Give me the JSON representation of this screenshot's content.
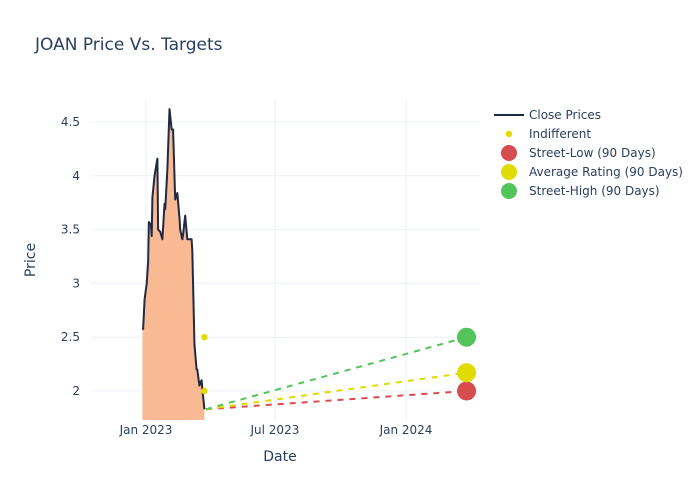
{
  "chart_data": {
    "type": "line",
    "title": "JOAN Price Vs. Targets",
    "xlabel": "Date",
    "ylabel": "Price",
    "x_range": [
      "2022-11-20",
      "2024-04-20"
    ],
    "y_range": [
      1.74,
      4.72
    ],
    "x_ticks": [
      {
        "date": "2023-01-01",
        "label": "Jan 2023"
      },
      {
        "date": "2023-07-01",
        "label": "Jul 2023"
      },
      {
        "date": "2024-01-01",
        "label": "Jan 2024"
      }
    ],
    "y_ticks": [
      {
        "value": 2,
        "label": "2"
      },
      {
        "value": 2.5,
        "label": "2.5"
      },
      {
        "value": 3,
        "label": "3"
      },
      {
        "value": 3.5,
        "label": "3.5"
      },
      {
        "value": 4,
        "label": "4"
      },
      {
        "value": 4.5,
        "label": "4.5"
      }
    ],
    "grid": true,
    "legend_position": "top-right",
    "series": [
      {
        "name": "Close Prices",
        "kind": "line-area",
        "color": "#1f2a44",
        "fill_color": "#f9b992",
        "points": [
          {
            "date": "2022-12-27",
            "value": 2.57
          },
          {
            "date": "2022-12-28",
            "value": 2.58
          },
          {
            "date": "2022-12-30",
            "value": 2.85
          },
          {
            "date": "2023-01-02",
            "value": 3.0
          },
          {
            "date": "2023-01-04",
            "value": 3.2
          },
          {
            "date": "2023-01-05",
            "value": 3.57
          },
          {
            "date": "2023-01-08",
            "value": 3.54
          },
          {
            "date": "2023-01-09",
            "value": 3.44
          },
          {
            "date": "2023-01-10",
            "value": 3.8
          },
          {
            "date": "2023-01-13",
            "value": 4.0
          },
          {
            "date": "2023-01-17",
            "value": 4.16
          },
          {
            "date": "2023-01-18",
            "value": 3.5
          },
          {
            "date": "2023-01-21",
            "value": 3.48
          },
          {
            "date": "2023-01-24",
            "value": 3.41
          },
          {
            "date": "2023-01-27",
            "value": 3.74
          },
          {
            "date": "2023-01-28",
            "value": 3.69
          },
          {
            "date": "2023-01-31",
            "value": 4.06
          },
          {
            "date": "2023-02-03",
            "value": 4.62
          },
          {
            "date": "2023-02-06",
            "value": 4.43
          },
          {
            "date": "2023-02-08",
            "value": 4.43
          },
          {
            "date": "2023-02-11",
            "value": 3.78
          },
          {
            "date": "2023-02-14",
            "value": 3.84
          },
          {
            "date": "2023-02-17",
            "value": 3.61
          },
          {
            "date": "2023-02-18",
            "value": 3.5
          },
          {
            "date": "2023-02-21",
            "value": 3.41
          },
          {
            "date": "2023-02-22",
            "value": 3.45
          },
          {
            "date": "2023-02-25",
            "value": 3.63
          },
          {
            "date": "2023-02-28",
            "value": 3.41
          },
          {
            "date": "2023-03-03",
            "value": 3.41
          },
          {
            "date": "2023-03-06",
            "value": 3.41
          },
          {
            "date": "2023-03-07",
            "value": 3.31
          },
          {
            "date": "2023-03-10",
            "value": 2.44
          },
          {
            "date": "2023-03-13",
            "value": 2.2
          },
          {
            "date": "2023-03-14",
            "value": 2.2
          },
          {
            "date": "2023-03-17",
            "value": 2.05
          },
          {
            "date": "2023-03-20",
            "value": 2.1
          },
          {
            "date": "2023-03-22",
            "value": 1.96
          },
          {
            "date": "2023-03-24",
            "value": 1.83
          }
        ]
      },
      {
        "name": "Indifferent",
        "kind": "markers",
        "color": "#e0dc00",
        "points": [
          {
            "date": "2023-03-24",
            "value": 2.5
          },
          {
            "date": "2023-03-24",
            "value": 2.0
          }
        ]
      },
      {
        "name": "Street-Low (90 Days)",
        "kind": "target",
        "color": "#d64c4f",
        "start": {
          "date": "2023-03-26",
          "value": 1.83
        },
        "end": {
          "date": "2024-03-26",
          "value": 2.0
        }
      },
      {
        "name": "Average Rating (90 Days)",
        "kind": "target",
        "color": "#e0dc00",
        "start": {
          "date": "2023-03-26",
          "value": 1.83
        },
        "end": {
          "date": "2024-03-26",
          "value": 2.17
        }
      },
      {
        "name": "Street-High (90 Days)",
        "kind": "target",
        "color": "#52c45a",
        "start": {
          "date": "2023-03-26",
          "value": 1.83
        },
        "end": {
          "date": "2024-03-26",
          "value": 2.5
        }
      }
    ]
  }
}
